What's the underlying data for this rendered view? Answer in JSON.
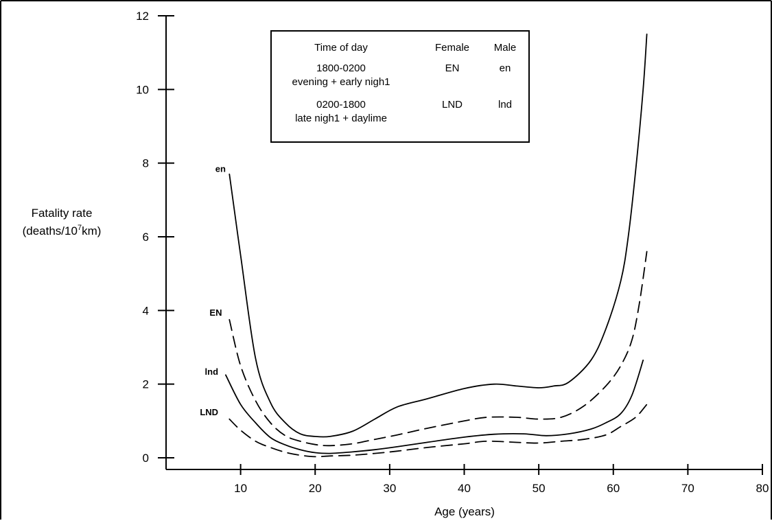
{
  "chart_data": {
    "type": "line",
    "xlabel": "Age (years)",
    "ylabel_line1": "Fatality rate",
    "ylabel_line2_prefix": "(deaths/10",
    "ylabel_sup": "7",
    "ylabel_line2_suffix": "km)",
    "xlim": [
      0,
      80
    ],
    "ylim": [
      0,
      12
    ],
    "x_ticks": [
      10,
      20,
      30,
      40,
      50,
      60,
      70,
      80
    ],
    "y_ticks": [
      0,
      2,
      4,
      6,
      8,
      10,
      12
    ],
    "grid": false,
    "legend": {
      "position": "top-center",
      "headers": [
        "Time of day",
        "Female",
        "Male"
      ],
      "rows": [
        {
          "time": "1800-0200",
          "desc": "evening + early nigh1",
          "female": "EN",
          "male": "en"
        },
        {
          "time": "0200-1800",
          "desc": "late nigh1 + daylime",
          "female": "LND",
          "male": "lnd"
        }
      ]
    },
    "series": [
      {
        "name": "en",
        "style": "solid",
        "x": [
          8.5,
          10,
          12,
          14,
          16,
          18,
          20,
          22,
          25,
          28,
          31,
          35,
          40,
          44,
          47,
          50,
          52,
          54,
          57,
          59,
          61,
          62,
          63,
          64,
          64.5
        ],
        "y": [
          7.7,
          5.5,
          2.7,
          1.5,
          0.95,
          0.65,
          0.58,
          0.58,
          0.72,
          1.05,
          1.38,
          1.6,
          1.88,
          2.0,
          1.95,
          1.9,
          1.95,
          2.05,
          2.65,
          3.5,
          4.8,
          6.0,
          7.8,
          10.0,
          11.5
        ]
      },
      {
        "name": "EN",
        "style": "dashed",
        "x": [
          8.5,
          10,
          12,
          14,
          16,
          18,
          20,
          22,
          25,
          28,
          31,
          35,
          40,
          43,
          47,
          50,
          53,
          56,
          59,
          61,
          62.5,
          63.5,
          64.5
        ],
        "y": [
          3.75,
          2.5,
          1.55,
          0.95,
          0.6,
          0.45,
          0.36,
          0.33,
          0.38,
          0.5,
          0.62,
          0.8,
          1.0,
          1.1,
          1.1,
          1.05,
          1.1,
          1.4,
          1.95,
          2.5,
          3.2,
          4.2,
          5.6
        ]
      },
      {
        "name": "lnd",
        "style": "solid",
        "x": [
          8,
          10,
          12,
          14,
          16,
          18,
          20,
          22,
          25,
          28,
          31,
          35,
          40,
          44,
          48,
          51,
          54,
          57,
          59,
          61,
          62.5,
          64
        ],
        "y": [
          2.25,
          1.45,
          0.95,
          0.55,
          0.35,
          0.22,
          0.14,
          0.12,
          0.16,
          0.22,
          0.3,
          0.42,
          0.56,
          0.64,
          0.65,
          0.6,
          0.65,
          0.78,
          0.95,
          1.2,
          1.7,
          2.65
        ]
      },
      {
        "name": "LND",
        "style": "dashed",
        "x": [
          8.5,
          10,
          12,
          14,
          16,
          18,
          20,
          22,
          25,
          28,
          31,
          35,
          40,
          43,
          47,
          50,
          53,
          56,
          59,
          61,
          63,
          64.5
        ],
        "y": [
          1.05,
          0.75,
          0.45,
          0.28,
          0.15,
          0.07,
          0.03,
          0.05,
          0.07,
          0.12,
          0.18,
          0.28,
          0.38,
          0.45,
          0.42,
          0.4,
          0.45,
          0.5,
          0.62,
          0.85,
          1.1,
          1.45
        ]
      }
    ]
  }
}
